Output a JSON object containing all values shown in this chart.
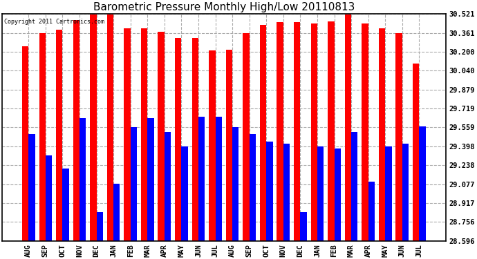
{
  "title": "Barometric Pressure Monthly High/Low 20110813",
  "copyright_text": "Copyright 2011 Cartronics.com",
  "categories": [
    "AUG",
    "SEP",
    "OCT",
    "NOV",
    "DEC",
    "JAN",
    "FEB",
    "MAR",
    "APR",
    "MAY",
    "JUN",
    "JUL",
    "AUG",
    "SEP",
    "OCT",
    "NOV",
    "DEC",
    "JAN",
    "FEB",
    "MAR",
    "APR",
    "MAY",
    "JUN",
    "JUL"
  ],
  "highs": [
    30.25,
    30.36,
    30.39,
    30.47,
    30.52,
    30.52,
    30.4,
    30.4,
    30.37,
    30.32,
    30.32,
    30.21,
    30.22,
    30.36,
    30.43,
    30.45,
    30.45,
    30.44,
    30.46,
    30.52,
    30.44,
    30.4,
    30.36,
    30.1
  ],
  "lows": [
    29.5,
    29.32,
    29.21,
    29.64,
    28.84,
    29.08,
    29.56,
    29.64,
    29.52,
    29.4,
    29.65,
    29.65,
    29.56,
    29.5,
    29.44,
    29.42,
    28.84,
    29.4,
    29.38,
    29.52,
    29.1,
    29.4,
    29.42,
    29.57
  ],
  "high_color": "#FF0000",
  "low_color": "#0000FF",
  "bg_color": "#FFFFFF",
  "plot_bg_color": "#FFFFFF",
  "grid_color": "#AAAAAA",
  "title_fontsize": 11,
  "yticks": [
    28.596,
    28.756,
    28.917,
    29.077,
    29.238,
    29.398,
    29.559,
    29.719,
    29.879,
    30.04,
    30.2,
    30.361,
    30.521
  ],
  "ymin": 28.596,
  "ymax": 30.521,
  "bar_width": 0.38
}
